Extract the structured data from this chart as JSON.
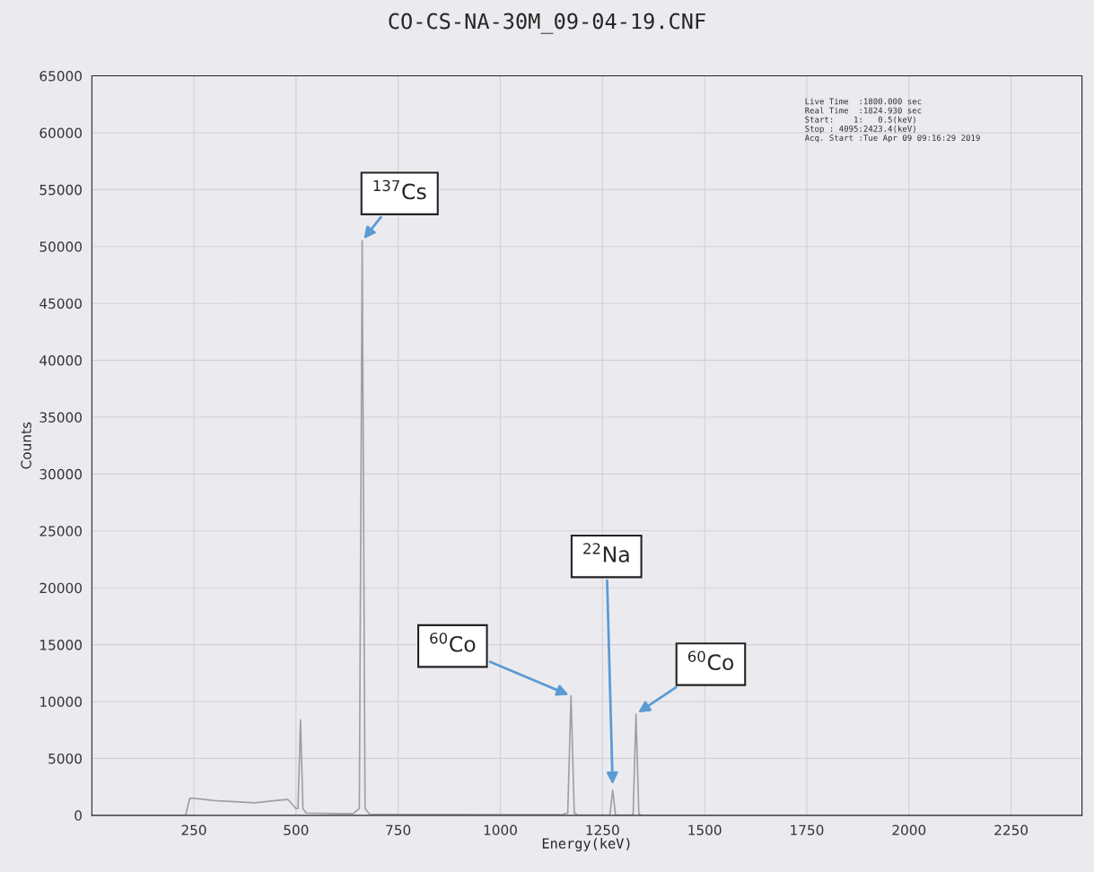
{
  "chart_data": {
    "type": "line",
    "title": "CO-CS-NA-30M_09-04-19.CNF",
    "xlabel": "Energy(keV)",
    "ylabel": "Counts",
    "series": [
      {
        "color": "#a0a0a0",
        "x": [
          0.5,
          230,
          240,
          250,
          300,
          350,
          400,
          450,
          480,
          500,
          505,
          511,
          517,
          525,
          600,
          640,
          655,
          662,
          669,
          680,
          800,
          1000,
          1150,
          1165,
          1173,
          1181,
          1190,
          1268,
          1275,
          1282,
          1320,
          1325,
          1332,
          1339,
          1345,
          2000,
          2423
        ],
        "values": [
          0,
          0,
          1500,
          1500,
          1300,
          1200,
          1100,
          1300,
          1400,
          600,
          600,
          8400,
          600,
          200,
          150,
          150,
          600,
          50500,
          600,
          100,
          80,
          60,
          50,
          200,
          10500,
          200,
          20,
          20,
          2200,
          20,
          20,
          100,
          8900,
          100,
          0,
          0,
          0
        ]
      }
    ],
    "xlim": [
      0.5,
      2423.4
    ],
    "ylim": [
      0,
      65000
    ],
    "xticks": [
      250,
      500,
      750,
      1000,
      1250,
      1500,
      1750,
      2000,
      2250
    ],
    "yticks": [
      0,
      5000,
      10000,
      15000,
      20000,
      25000,
      30000,
      35000,
      40000,
      45000,
      50000,
      55000,
      60000,
      65000
    ],
    "grid": true,
    "annotations": [
      {
        "text": "$^{137}$Cs",
        "x": 662,
        "y": 50500
      },
      {
        "text": "$^{60}$Co",
        "x": 1173,
        "y": 10500
      },
      {
        "text": "$^{22}$Na",
        "x": 1275,
        "y": 2500
      },
      {
        "text": "$^{60}$Co",
        "x": 1332,
        "y": 8900
      },
      "Live Time  :1800.000 sec\nReal Time  :1824.930 sec\nStart:    1:   0.5(keV)\nStop : 4095:2423.4(keV)\nAcq. Start :Tue Apr 09 09:16:29 2019"
    ]
  }
}
